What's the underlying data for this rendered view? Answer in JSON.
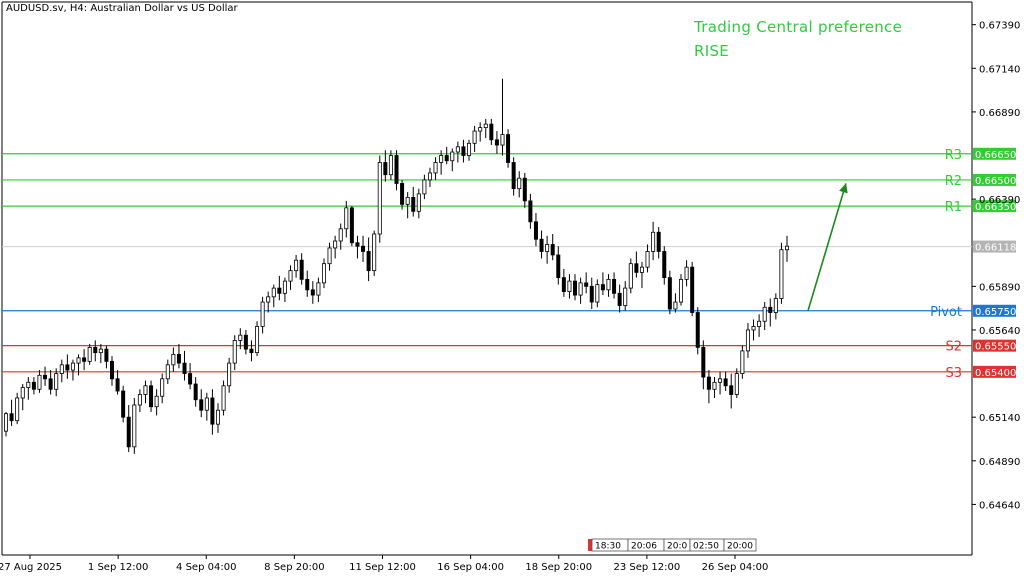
{
  "symbol_title": "AUDUSD.sv, H4:  Australian Dollar vs US Dollar",
  "preference": {
    "line1": "Trading Central preference",
    "line2": "RISE"
  },
  "colors": {
    "resistance": "#33cc33",
    "pivot": "#1e78d2",
    "support": "#e03030",
    "arrow": "#1a8a1a",
    "candle": "#000000",
    "current": "#b4b4b4"
  },
  "chart_data": {
    "type": "candlestick",
    "y_ticks": [
      "0.67390",
      "0.67140",
      "0.66890",
      "0.66390",
      "0.65890",
      "0.65640",
      "0.65140",
      "0.64890",
      "0.64640"
    ],
    "x_ticks": [
      "27 Aug 2025",
      "1 Sep 12:00",
      "4 Sep 04:00",
      "8 Sep 20:00",
      "11 Sep 12:00",
      "16 Sep 04:00",
      "18 Sep 20:00",
      "23 Sep 12:00",
      "26 Sep 04:00"
    ],
    "ylim": [
      0.6435,
      0.6752
    ],
    "current_price": "0.66118",
    "levels": [
      {
        "name": "R3",
        "value": "0.66650",
        "kind": "resistance"
      },
      {
        "name": "R2",
        "value": "0.66500",
        "kind": "resistance"
      },
      {
        "name": "R1",
        "value": "0.66350",
        "kind": "resistance"
      },
      {
        "name": "Pivot",
        "value": "0.65750",
        "kind": "pivot"
      },
      {
        "name": "S2",
        "value": "0.65550",
        "kind": "support"
      },
      {
        "name": "S3",
        "value": "0.65400",
        "kind": "support"
      }
    ],
    "timeline_labels": [
      "18:30",
      "20:06",
      "20:0",
      "02:50",
      "20:00"
    ],
    "candles": [
      [
        0.6506,
        0.6517,
        0.6503,
        0.6516
      ],
      [
        0.6516,
        0.6524,
        0.6509,
        0.6512
      ],
      [
        0.6512,
        0.6528,
        0.651,
        0.6525
      ],
      [
        0.6525,
        0.6533,
        0.6518,
        0.6531
      ],
      [
        0.6531,
        0.6537,
        0.6524,
        0.6534
      ],
      [
        0.6534,
        0.6537,
        0.6527,
        0.653
      ],
      [
        0.653,
        0.6541,
        0.6528,
        0.6538
      ],
      [
        0.6538,
        0.6543,
        0.6532,
        0.6536
      ],
      [
        0.6536,
        0.6541,
        0.6527,
        0.653
      ],
      [
        0.653,
        0.6542,
        0.6526,
        0.6539
      ],
      [
        0.6539,
        0.6547,
        0.6534,
        0.6544
      ],
      [
        0.6544,
        0.655,
        0.6536,
        0.6541
      ],
      [
        0.6541,
        0.6547,
        0.6535,
        0.6545
      ],
      [
        0.6545,
        0.655,
        0.6538,
        0.6548
      ],
      [
        0.6548,
        0.6553,
        0.6541,
        0.6546
      ],
      [
        0.6546,
        0.6556,
        0.6544,
        0.6554
      ],
      [
        0.6554,
        0.6558,
        0.6546,
        0.6551
      ],
      [
        0.6551,
        0.6556,
        0.6545,
        0.6553
      ],
      [
        0.6553,
        0.6555,
        0.6542,
        0.6546
      ],
      [
        0.6546,
        0.6549,
        0.6532,
        0.6536
      ],
      [
        0.6536,
        0.6541,
        0.6527,
        0.6529
      ],
      [
        0.6529,
        0.6532,
        0.6511,
        0.6514
      ],
      [
        0.6514,
        0.6521,
        0.6494,
        0.6497
      ],
      [
        0.6497,
        0.6525,
        0.6493,
        0.6521
      ],
      [
        0.6521,
        0.653,
        0.6517,
        0.6527
      ],
      [
        0.6527,
        0.6535,
        0.6522,
        0.6532
      ],
      [
        0.6532,
        0.6535,
        0.6517,
        0.652
      ],
      [
        0.652,
        0.653,
        0.6515,
        0.6526
      ],
      [
        0.6526,
        0.6539,
        0.6522,
        0.6536
      ],
      [
        0.6536,
        0.6547,
        0.6533,
        0.6544
      ],
      [
        0.6544,
        0.6554,
        0.654,
        0.655
      ],
      [
        0.655,
        0.6556,
        0.6542,
        0.6545
      ],
      [
        0.6545,
        0.6552,
        0.6535,
        0.6539
      ],
      [
        0.6539,
        0.6545,
        0.653,
        0.6533
      ],
      [
        0.6533,
        0.6537,
        0.652,
        0.6524
      ],
      [
        0.6524,
        0.653,
        0.6514,
        0.6518
      ],
      [
        0.6518,
        0.6528,
        0.6512,
        0.6525
      ],
      [
        0.6525,
        0.653,
        0.6504,
        0.651
      ],
      [
        0.651,
        0.6522,
        0.6505,
        0.6518
      ],
      [
        0.6518,
        0.6535,
        0.6515,
        0.6532
      ],
      [
        0.6532,
        0.6548,
        0.6528,
        0.6545
      ],
      [
        0.6545,
        0.6561,
        0.6541,
        0.6558
      ],
      [
        0.6558,
        0.6565,
        0.6553,
        0.6561
      ],
      [
        0.6561,
        0.6564,
        0.655,
        0.6553
      ],
      [
        0.6553,
        0.6558,
        0.6546,
        0.6551
      ],
      [
        0.6551,
        0.6569,
        0.6549,
        0.6566
      ],
      [
        0.6566,
        0.6583,
        0.6562,
        0.658
      ],
      [
        0.658,
        0.6586,
        0.6574,
        0.6583
      ],
      [
        0.6583,
        0.659,
        0.6577,
        0.6588
      ],
      [
        0.6588,
        0.6595,
        0.6581,
        0.6585
      ],
      [
        0.6585,
        0.6594,
        0.658,
        0.6592
      ],
      [
        0.6592,
        0.6601,
        0.6587,
        0.6598
      ],
      [
        0.6598,
        0.6607,
        0.6594,
        0.6604
      ],
      [
        0.6604,
        0.6608,
        0.659,
        0.6593
      ],
      [
        0.6593,
        0.6598,
        0.6583,
        0.6587
      ],
      [
        0.6587,
        0.6592,
        0.6579,
        0.6584
      ],
      [
        0.6584,
        0.6594,
        0.658,
        0.6591
      ],
      [
        0.6591,
        0.6605,
        0.6588,
        0.6602
      ],
      [
        0.6602,
        0.6614,
        0.6598,
        0.6611
      ],
      [
        0.6611,
        0.6618,
        0.6605,
        0.6615
      ],
      [
        0.6615,
        0.6625,
        0.661,
        0.6622
      ],
      [
        0.6622,
        0.6638,
        0.6617,
        0.6634
      ],
      [
        0.6634,
        0.6635,
        0.6612,
        0.6614
      ],
      [
        0.6614,
        0.6618,
        0.6605,
        0.6612
      ],
      [
        0.6612,
        0.6618,
        0.6603,
        0.6609
      ],
      [
        0.6609,
        0.6617,
        0.6592,
        0.6598
      ],
      [
        0.6598,
        0.6621,
        0.6595,
        0.6619
      ],
      [
        0.6619,
        0.6664,
        0.6614,
        0.666
      ],
      [
        0.666,
        0.6667,
        0.6649,
        0.6653
      ],
      [
        0.6653,
        0.6667,
        0.665,
        0.6664
      ],
      [
        0.6664,
        0.6667,
        0.6644,
        0.6648
      ],
      [
        0.6648,
        0.665,
        0.6633,
        0.6636
      ],
      [
        0.6636,
        0.6643,
        0.6628,
        0.664
      ],
      [
        0.664,
        0.6646,
        0.6629,
        0.6632
      ],
      [
        0.6632,
        0.6645,
        0.6628,
        0.6642
      ],
      [
        0.6642,
        0.6653,
        0.6639,
        0.665
      ],
      [
        0.665,
        0.6657,
        0.6646,
        0.6654
      ],
      [
        0.6654,
        0.6663,
        0.665,
        0.666
      ],
      [
        0.666,
        0.6667,
        0.6653,
        0.6664
      ],
      [
        0.6664,
        0.6669,
        0.6659,
        0.6661
      ],
      [
        0.6661,
        0.6668,
        0.6655,
        0.6666
      ],
      [
        0.6666,
        0.6672,
        0.666,
        0.6669
      ],
      [
        0.6669,
        0.6673,
        0.666,
        0.6664
      ],
      [
        0.6664,
        0.6673,
        0.6661,
        0.6671
      ],
      [
        0.6671,
        0.6681,
        0.6666,
        0.6678
      ],
      [
        0.6678,
        0.6683,
        0.6672,
        0.668
      ],
      [
        0.668,
        0.6685,
        0.6674,
        0.6682
      ],
      [
        0.6682,
        0.6685,
        0.667,
        0.6673
      ],
      [
        0.6673,
        0.6678,
        0.6665,
        0.667
      ],
      [
        0.667,
        0.6708,
        0.6664,
        0.6676
      ],
      [
        0.6676,
        0.6679,
        0.6657,
        0.666
      ],
      [
        0.666,
        0.6663,
        0.6641,
        0.6645
      ],
      [
        0.6645,
        0.6655,
        0.664,
        0.6651
      ],
      [
        0.6651,
        0.6654,
        0.6634,
        0.6638
      ],
      [
        0.6638,
        0.6642,
        0.6622,
        0.6626
      ],
      [
        0.6626,
        0.6631,
        0.6612,
        0.6616
      ],
      [
        0.6616,
        0.6621,
        0.6605,
        0.6609
      ],
      [
        0.6609,
        0.6618,
        0.6602,
        0.6613
      ],
      [
        0.6613,
        0.6619,
        0.6604,
        0.6607
      ],
      [
        0.6607,
        0.6612,
        0.659,
        0.6594
      ],
      [
        0.6594,
        0.6599,
        0.6583,
        0.6586
      ],
      [
        0.6586,
        0.6596,
        0.6582,
        0.6592
      ],
      [
        0.6592,
        0.6596,
        0.6581,
        0.6584
      ],
      [
        0.6584,
        0.6594,
        0.6579,
        0.6591
      ],
      [
        0.6591,
        0.6597,
        0.6585,
        0.6589
      ],
      [
        0.6589,
        0.6594,
        0.6576,
        0.658
      ],
      [
        0.658,
        0.6593,
        0.6577,
        0.659
      ],
      [
        0.659,
        0.6597,
        0.6584,
        0.6587
      ],
      [
        0.6587,
        0.6596,
        0.6583,
        0.6593
      ],
      [
        0.6593,
        0.6597,
        0.6582,
        0.6585
      ],
      [
        0.6585,
        0.659,
        0.6574,
        0.6578
      ],
      [
        0.6578,
        0.6592,
        0.6575,
        0.6588
      ],
      [
        0.6588,
        0.6605,
        0.6585,
        0.6602
      ],
      [
        0.6602,
        0.6609,
        0.6594,
        0.6597
      ],
      [
        0.6597,
        0.6603,
        0.6588,
        0.66
      ],
      [
        0.66,
        0.6613,
        0.6597,
        0.6609
      ],
      [
        0.6609,
        0.6626,
        0.6604,
        0.662
      ],
      [
        0.662,
        0.6623,
        0.6605,
        0.6609
      ],
      [
        0.6609,
        0.6612,
        0.659,
        0.6594
      ],
      [
        0.6594,
        0.6598,
        0.6573,
        0.6576
      ],
      [
        0.6576,
        0.6585,
        0.6574,
        0.658
      ],
      [
        0.658,
        0.6596,
        0.6578,
        0.6593
      ],
      [
        0.6593,
        0.6604,
        0.6589,
        0.66
      ],
      [
        0.66,
        0.6603,
        0.6572,
        0.6574
      ],
      [
        0.6574,
        0.6577,
        0.655,
        0.6554
      ],
      [
        0.6554,
        0.6558,
        0.653,
        0.6537
      ],
      [
        0.6537,
        0.6541,
        0.6522,
        0.653
      ],
      [
        0.653,
        0.6537,
        0.6525,
        0.6534
      ],
      [
        0.6534,
        0.654,
        0.6527,
        0.6536
      ],
      [
        0.6536,
        0.654,
        0.6529,
        0.6532
      ],
      [
        0.6532,
        0.6539,
        0.6519,
        0.6527
      ],
      [
        0.6527,
        0.6542,
        0.6525,
        0.6539
      ],
      [
        0.6539,
        0.6555,
        0.6536,
        0.6552
      ],
      [
        0.6552,
        0.6568,
        0.6548,
        0.6564
      ],
      [
        0.6564,
        0.657,
        0.6558,
        0.6566
      ],
      [
        0.6566,
        0.6573,
        0.656,
        0.6569
      ],
      [
        0.6569,
        0.658,
        0.6564,
        0.6577
      ],
      [
        0.6577,
        0.6582,
        0.6566,
        0.6574
      ],
      [
        0.6574,
        0.6585,
        0.657,
        0.6582
      ],
      [
        0.6582,
        0.6614,
        0.6579,
        0.661
      ],
      [
        0.661,
        0.6618,
        0.6603,
        0.6612
      ]
    ]
  }
}
